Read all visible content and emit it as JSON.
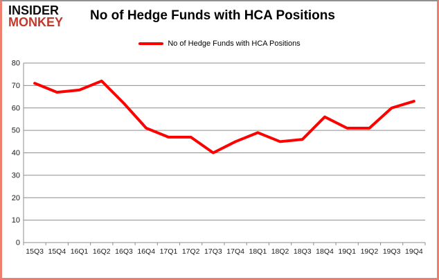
{
  "header": {
    "logo_line1": "INSIDER",
    "logo_line2": "MONKEY",
    "title": "No of Hedge Funds with HCA Positions"
  },
  "legend": {
    "label": "No of Hedge Funds with HCA Positions"
  },
  "colors": {
    "series_line": "#ff0000",
    "gridline": "#8c8c8c",
    "axis_text": "#1a1a1a",
    "frame_border": "#ee7e6e",
    "frame_top": "#8f8f8f",
    "logo_black": "#0d0d0d",
    "logo_red": "#c0392b"
  },
  "chart_data": {
    "type": "line",
    "title": "No of Hedge Funds with HCA Positions",
    "categories": [
      "15Q3",
      "15Q4",
      "16Q1",
      "16Q2",
      "16Q3",
      "16Q4",
      "17Q1",
      "17Q2",
      "17Q3",
      "17Q4",
      "18Q1",
      "18Q2",
      "18Q3",
      "18Q4",
      "19Q1",
      "19Q2",
      "19Q3",
      "19Q4"
    ],
    "series": [
      {
        "name": "No of Hedge Funds with HCA Positions",
        "values": [
          71,
          67,
          68,
          72,
          62,
          51,
          47,
          47,
          40,
          45,
          49,
          45,
          46,
          56,
          51,
          51,
          60,
          63
        ]
      }
    ],
    "xlabel": "",
    "ylabel": "",
    "ylim": [
      0,
      80
    ],
    "ytick_step": 10,
    "yticks": [
      0,
      10,
      20,
      30,
      40,
      50,
      60,
      70,
      80
    ],
    "grid": true,
    "legend_position": "top-center",
    "line_width": 4,
    "markers": false
  }
}
